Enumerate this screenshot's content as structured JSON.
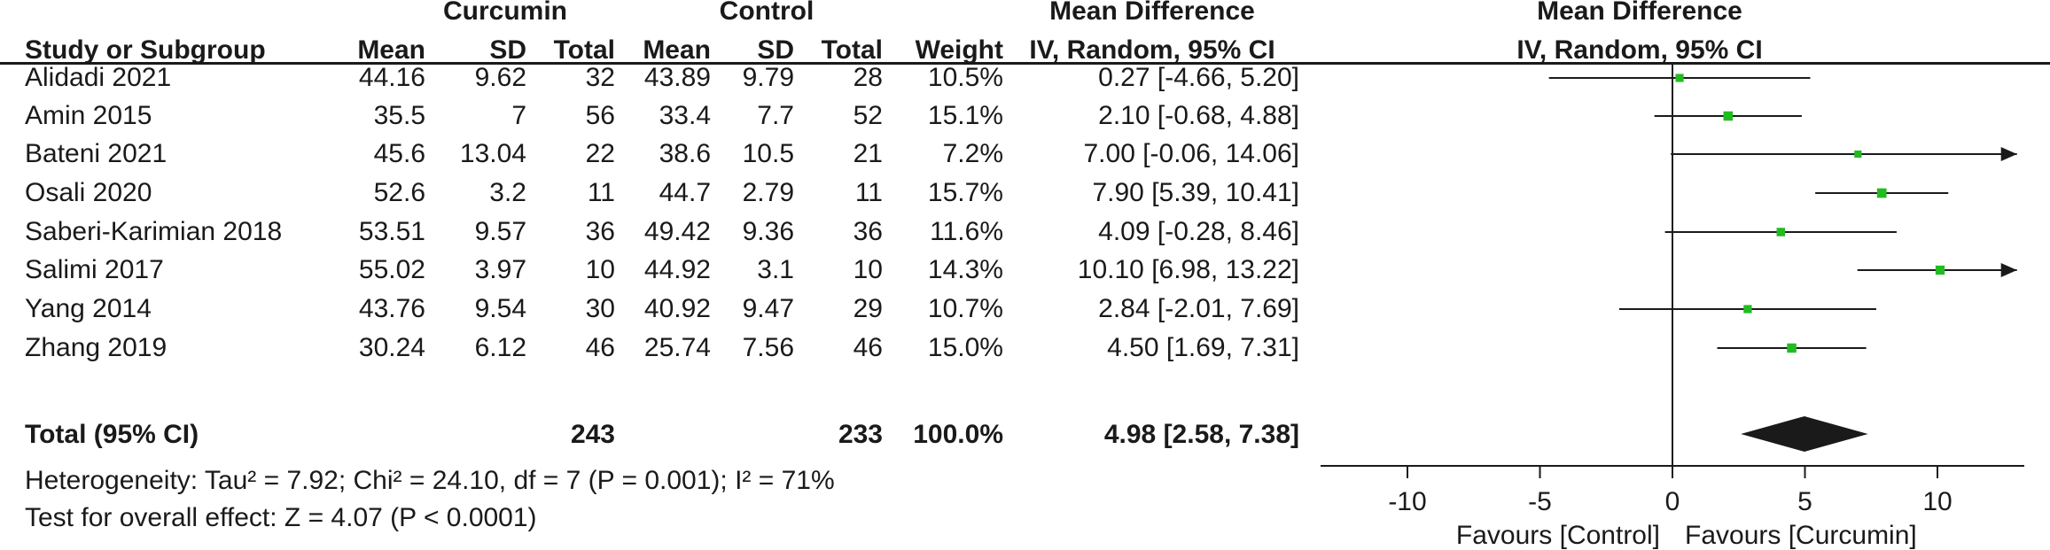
{
  "headers": {
    "group1": "Curcumin",
    "group2": "Control",
    "effect_top": "Mean Difference",
    "effect_bottom": "IV, Random, 95% CI",
    "plot_top": "Mean Difference",
    "plot_bottom": "IV, Random, 95% CI",
    "study": "Study or Subgroup",
    "mean1": "Mean",
    "sd1": "SD",
    "total1": "Total",
    "mean2": "Mean",
    "sd2": "SD",
    "total2": "Total",
    "weight": "Weight"
  },
  "studies": [
    {
      "name": "Alidadi 2021",
      "m1": "44.16",
      "sd1": "9.62",
      "n1": "32",
      "m2": "43.89",
      "sd2": "9.79",
      "n2": "28",
      "weight": "10.5%",
      "ci": "0.27 [-4.66, 5.20]"
    },
    {
      "name": "Amin 2015",
      "m1": "35.5",
      "sd1": "7",
      "n1": "56",
      "m2": "33.4",
      "sd2": "7.7",
      "n2": "52",
      "weight": "15.1%",
      "ci": "2.10 [-0.68, 4.88]"
    },
    {
      "name": "Bateni 2021",
      "m1": "45.6",
      "sd1": "13.04",
      "n1": "22",
      "m2": "38.6",
      "sd2": "10.5",
      "n2": "21",
      "weight": "7.2%",
      "ci": "7.00 [-0.06, 14.06]"
    },
    {
      "name": "Osali  2020",
      "m1": "52.6",
      "sd1": "3.2",
      "n1": "11",
      "m2": "44.7",
      "sd2": "2.79",
      "n2": "11",
      "weight": "15.7%",
      "ci": "7.90 [5.39, 10.41]"
    },
    {
      "name": "Saberi-Karimian 2018",
      "m1": "53.51",
      "sd1": "9.57",
      "n1": "36",
      "m2": "49.42",
      "sd2": "9.36",
      "n2": "36",
      "weight": "11.6%",
      "ci": "4.09 [-0.28, 8.46]"
    },
    {
      "name": "Salimi 2017",
      "m1": "55.02",
      "sd1": "3.97",
      "n1": "10",
      "m2": "44.92",
      "sd2": "3.1",
      "n2": "10",
      "weight": "14.3%",
      "ci": "10.10 [6.98, 13.22]"
    },
    {
      "name": "Yang 2014",
      "m1": "43.76",
      "sd1": "9.54",
      "n1": "30",
      "m2": "40.92",
      "sd2": "9.47",
      "n2": "29",
      "weight": "10.7%",
      "ci": "2.84 [-2.01, 7.69]"
    },
    {
      "name": "Zhang 2019",
      "m1": "30.24",
      "sd1": "6.12",
      "n1": "46",
      "m2": "25.74",
      "sd2": "7.56",
      "n2": "46",
      "weight": "15.0%",
      "ci": "4.50 [1.69, 7.31]"
    }
  ],
  "total": {
    "label": "Total (95% CI)",
    "n1": "243",
    "n2": "233",
    "weight": "100.0%",
    "ci": "4.98 [2.58, 7.38]"
  },
  "heterogeneity": "Heterogeneity: Tau² = 7.92; Chi² = 24.10, df = 7 (P = 0.001); I² = 71%",
  "overall_effect": "Test for overall effect: Z = 4.07 (P < 0.0001)",
  "colors": {
    "marker": "#22bb22",
    "line": "#1a1a1a"
  },
  "chart_data": {
    "type": "forest",
    "xlim": [
      -10,
      13
    ],
    "ticks": [
      -10,
      -5,
      0,
      5,
      10
    ],
    "tick_labels": [
      "-10",
      "-5",
      "0",
      "5",
      "10"
    ],
    "favours_left": "Favours [Control]",
    "favours_right": "Favours [Curcumin]",
    "studies": [
      {
        "md": 0.27,
        "lo": -4.66,
        "hi": 5.2,
        "weight": 10.5
      },
      {
        "md": 2.1,
        "lo": -0.68,
        "hi": 4.88,
        "weight": 15.1
      },
      {
        "md": 7.0,
        "lo": -0.06,
        "hi": 14.06,
        "weight": 7.2
      },
      {
        "md": 7.9,
        "lo": 5.39,
        "hi": 10.41,
        "weight": 15.7
      },
      {
        "md": 4.09,
        "lo": -0.28,
        "hi": 8.46,
        "weight": 11.6
      },
      {
        "md": 10.1,
        "lo": 6.98,
        "hi": 13.22,
        "weight": 14.3
      },
      {
        "md": 2.84,
        "lo": -2.01,
        "hi": 7.69,
        "weight": 10.7
      },
      {
        "md": 4.5,
        "lo": 1.69,
        "hi": 7.31,
        "weight": 15.0
      }
    ],
    "pooled": {
      "md": 4.98,
      "lo": 2.58,
      "hi": 7.38
    }
  }
}
